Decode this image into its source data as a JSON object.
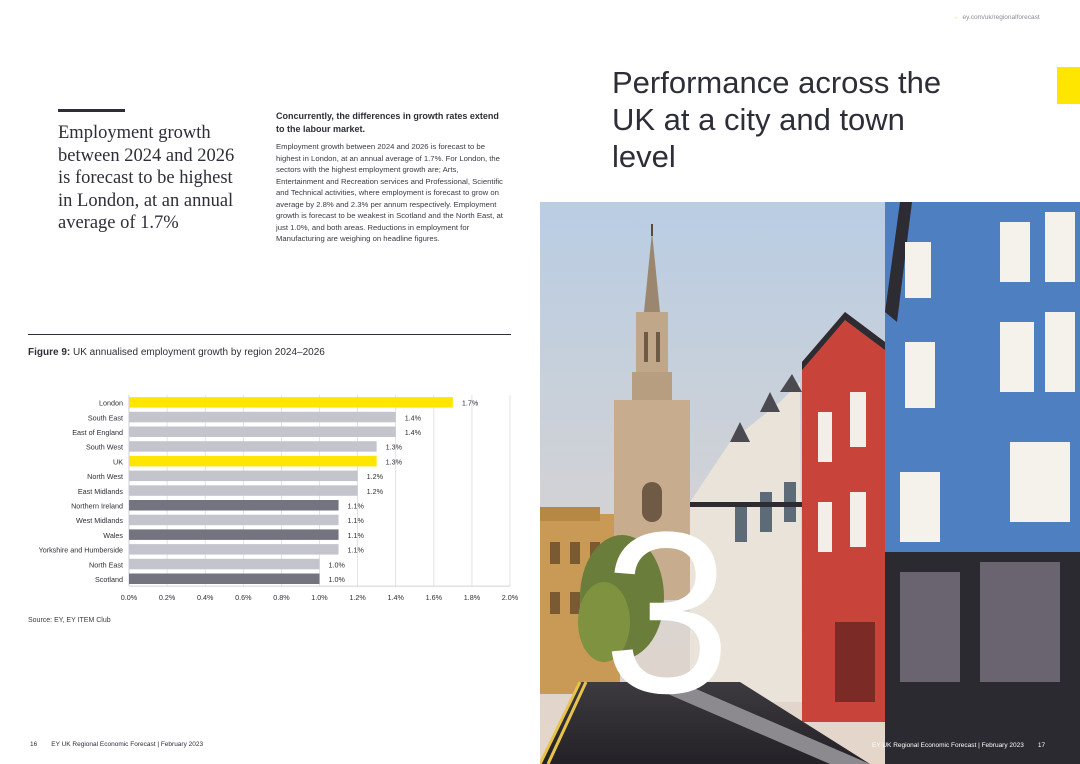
{
  "header": {
    "link_text": "ey.com/uk/regionalforecast",
    "accent_color": "#ffe600"
  },
  "left_page": {
    "pull_quote": "Employment growth between 2024 and 2026 is forecast to be highest in London, at an annual average of 1.7%",
    "body_lead": "Concurrently, the differences in growth rates extend to the labour market.",
    "body_text": "Employment growth between 2024 and 2026 is forecast to be highest in London, at an annual average of 1.7%. For London, the sectors with the highest employment growth are; Arts, Entertainment and Recreation services and Professional, Scientific and Technical activities, where employment is forecast to grow on average by 2.8% and 2.3% per annum respectively. Employment growth is forecast to be weakest in Scotland and the North East, at just 1.0%, and both areas. Reductions in employment for Manufacturing are weighing on headline figures.",
    "figure_label": "Figure 9:",
    "figure_title": "UK annualised employment growth by region 2024–2026",
    "source": "Source: EY, EY ITEM Club",
    "page_number": "16",
    "footer": "EY UK Regional Economic Forecast  |  February 2023"
  },
  "right_page": {
    "title": "Performance across the UK at a city and town level",
    "section_number": "3",
    "page_number": "17",
    "footer": "EY UK Regional Economic Forecast  |  February 2023"
  },
  "chart_data": {
    "type": "bar",
    "orientation": "horizontal",
    "categories": [
      "London",
      "South East",
      "East of England",
      "South West",
      "UK",
      "North West",
      "East Midlands",
      "Northern Ireland",
      "West Midlands",
      "Wales",
      "Yorkshire and Humberside",
      "North East",
      "Scotland"
    ],
    "values": [
      1.7,
      1.4,
      1.4,
      1.3,
      1.3,
      1.2,
      1.2,
      1.1,
      1.1,
      1.1,
      1.1,
      1.0,
      1.0
    ],
    "data_labels": [
      "1.7%",
      "1.4%",
      "1.4%",
      "1.3%",
      "1.3%",
      "1.2%",
      "1.2%",
      "1.1%",
      "1.1%",
      "1.1%",
      "1.1%",
      "1.0%",
      "1.0%"
    ],
    "bar_colors": [
      "#ffe600",
      "#c4c4cd",
      "#c4c4cd",
      "#c4c4cd",
      "#ffe600",
      "#c4c4cd",
      "#c4c4cd",
      "#747480",
      "#c4c4cd",
      "#747480",
      "#c4c4cd",
      "#c4c4cd",
      "#747480"
    ],
    "xlim": [
      0,
      2.0
    ],
    "xticks": [
      "0.0%",
      "0.2%",
      "0.4%",
      "0.6%",
      "0.8%",
      "1.0%",
      "1.2%",
      "1.4%",
      "1.6%",
      "1.8%",
      "2.0%"
    ],
    "grid": true
  }
}
